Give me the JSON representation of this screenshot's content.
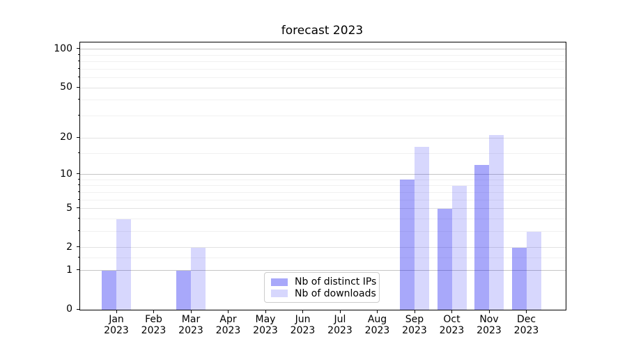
{
  "title": "forecast 2023",
  "colors": {
    "bar_base": "#0000f0",
    "ips_alpha": 0.34,
    "downloads_alpha": 0.155,
    "ips_solid_hex": "#a8a8fa",
    "downloads_solid_hex": "#d7d7fc",
    "grid_major": "#c5c5c5",
    "grid_mid": "#e2e2e2",
    "grid_minor": "#f1f1f1",
    "spine": "#000000",
    "legend_border": "#cccccc"
  },
  "chart_data": {
    "type": "bar",
    "title": "forecast 2023",
    "categories": [
      "Jan 2023",
      "Feb 2023",
      "Mar 2023",
      "Apr 2023",
      "May 2023",
      "Jun 2023",
      "Jul 2023",
      "Aug 2023",
      "Sep 2023",
      "Oct 2023",
      "Nov 2023",
      "Dec 2023"
    ],
    "series": [
      {
        "name": "Nb of distinct IPs",
        "values": [
          1,
          0,
          1,
          0,
          0,
          0,
          0,
          0,
          9,
          5,
          12,
          2
        ]
      },
      {
        "name": "Nb of downloads",
        "values": [
          4,
          0,
          2,
          0,
          0,
          0,
          0,
          0,
          17,
          8,
          21,
          3
        ]
      }
    ],
    "xlabel": "",
    "ylabel": "",
    "yscale": "log10(1+y)",
    "ylim": [
      0,
      113
    ],
    "y_ticks": [
      0,
      1,
      2,
      5,
      10,
      20,
      50,
      100
    ],
    "y_major_gridlines": [
      1,
      10,
      100
    ],
    "y_mid_gridlines": [
      2,
      5,
      20,
      50
    ],
    "y_minor_gridlines": [
      1.5,
      3,
      4,
      6,
      7,
      8,
      9,
      15,
      30,
      40,
      60,
      70,
      80,
      90
    ],
    "grid": true,
    "legend_position": "lower center inside axes"
  }
}
